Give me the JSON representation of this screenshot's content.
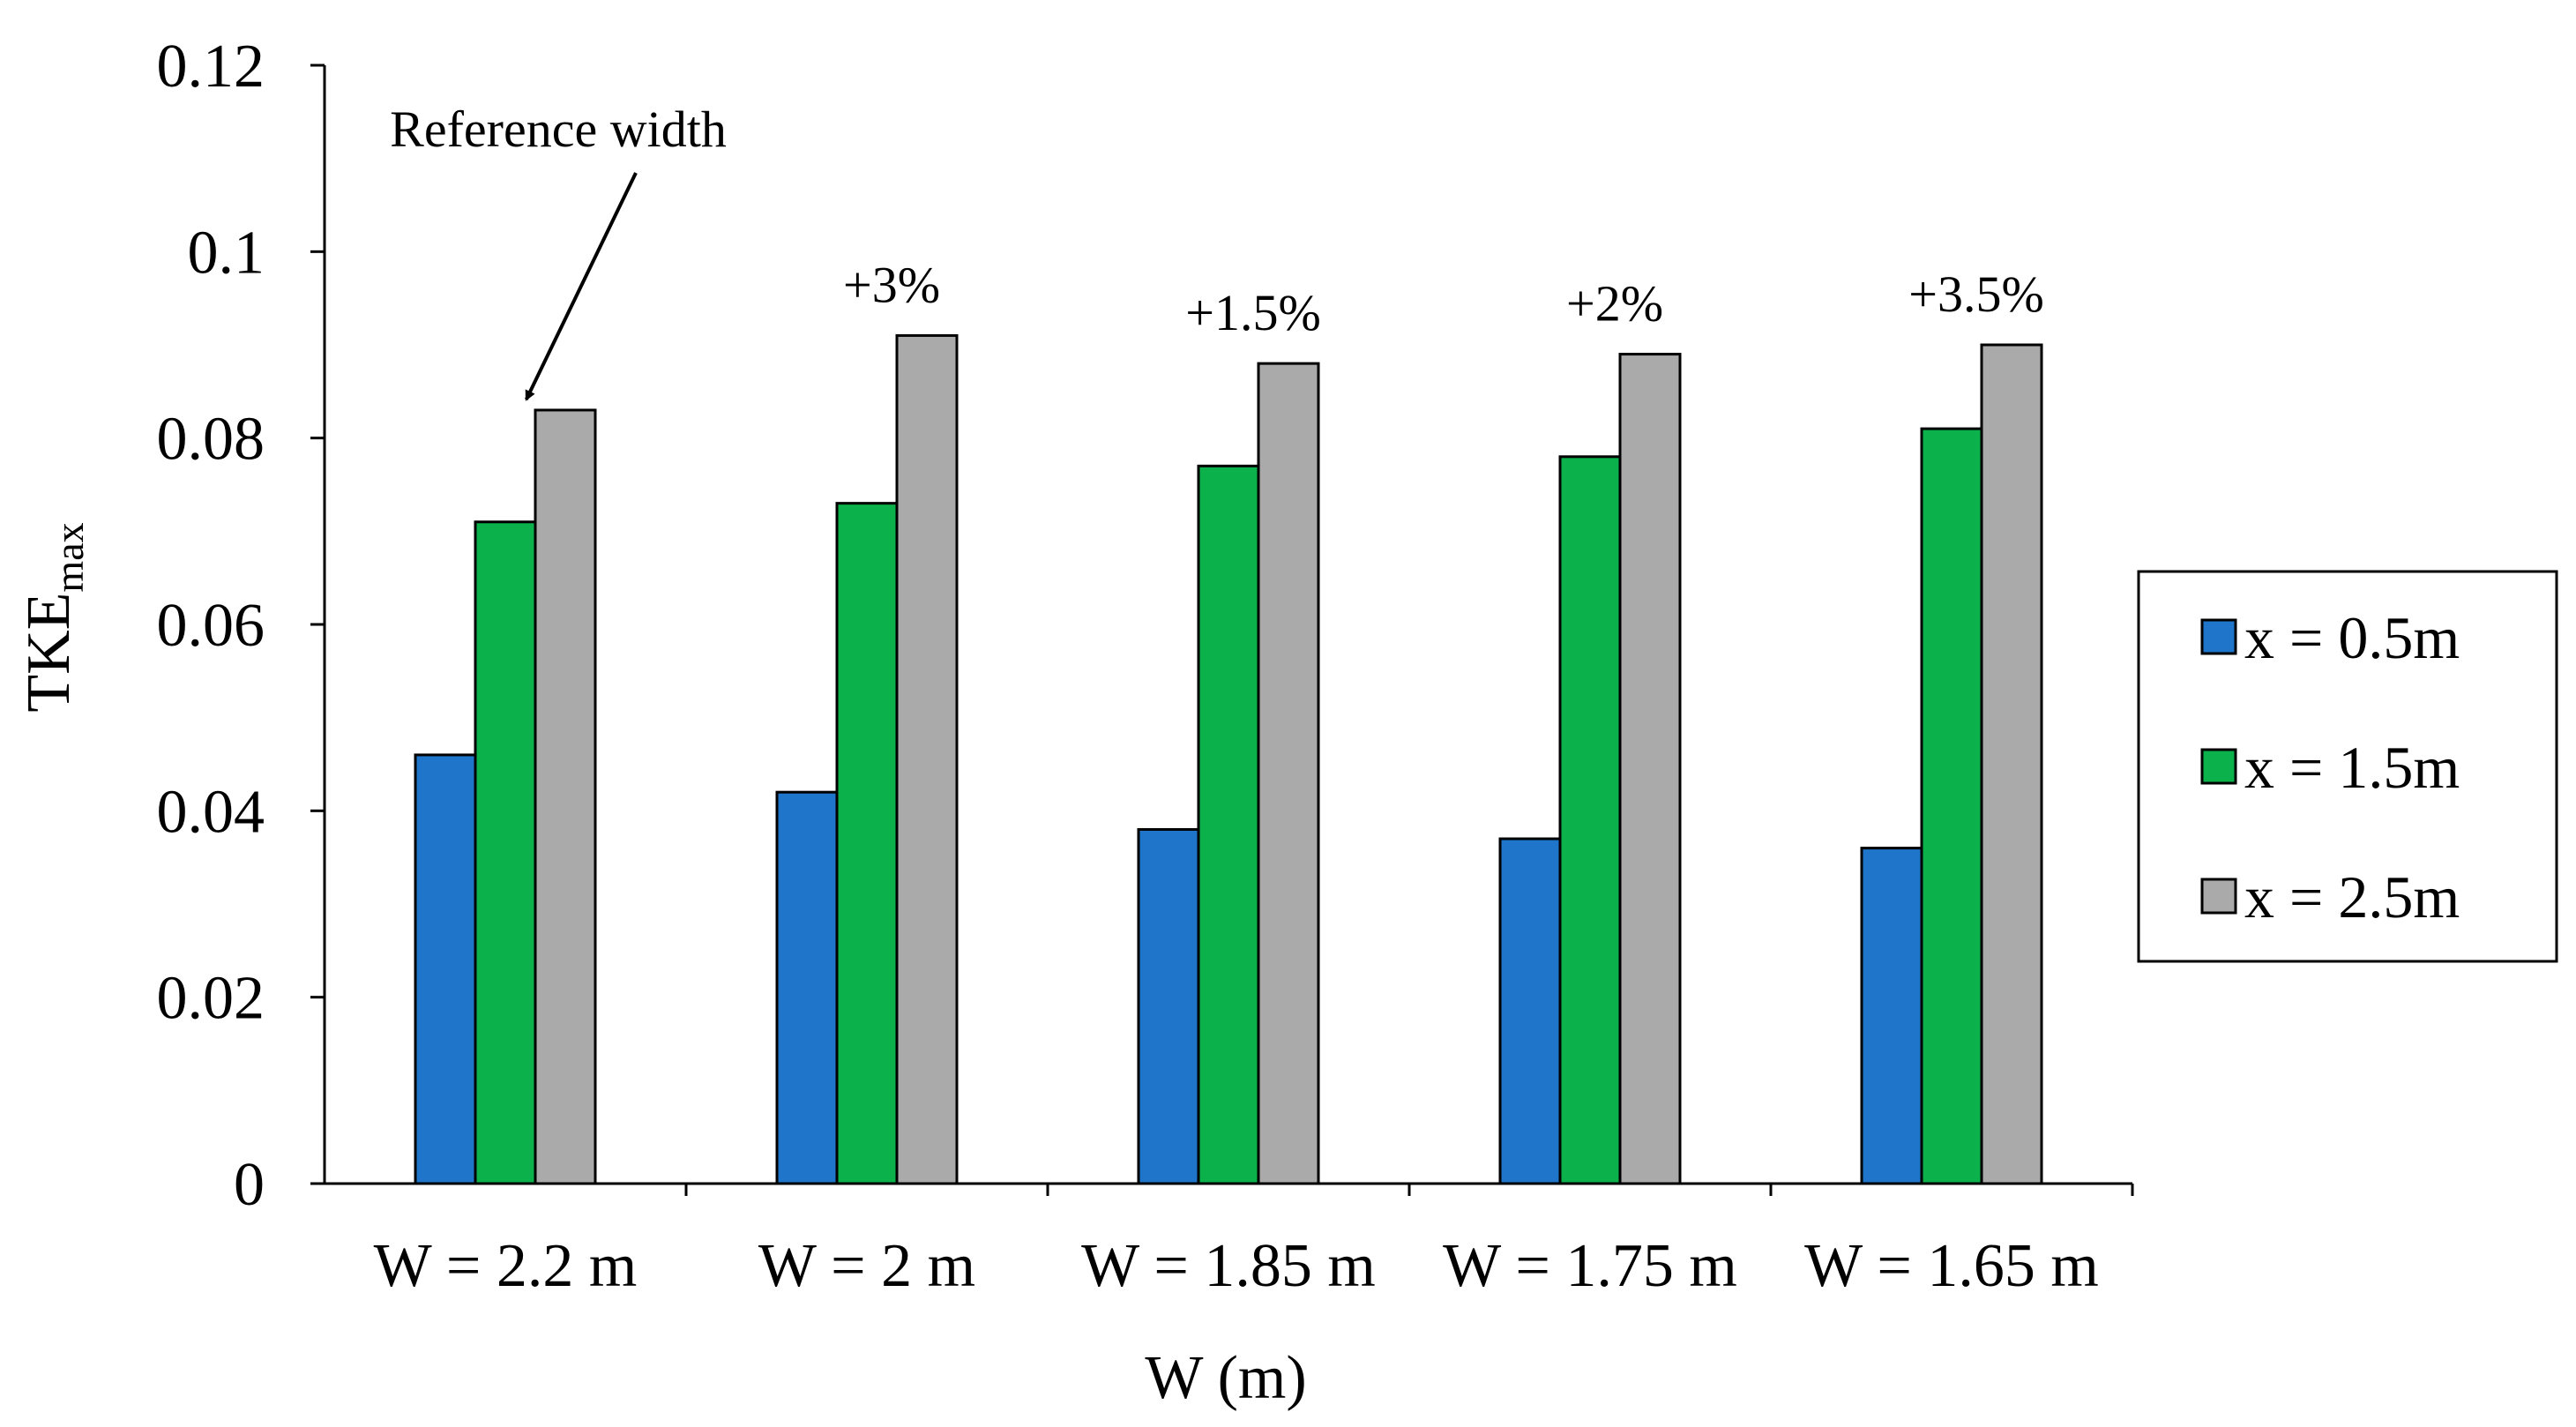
{
  "chart_data": {
    "type": "bar",
    "title": "",
    "xlabel": "W (m)",
    "ylabel": "TKE",
    "ylabel_sub": "max",
    "categories": [
      "W = 2.2 m",
      "W = 2 m",
      "W = 1.85 m",
      "W = 1.75 m",
      "W = 1.65 m"
    ],
    "series": [
      {
        "name": "x = 0.5m",
        "color": "#1F75C9",
        "values": [
          0.046,
          0.042,
          0.038,
          0.037,
          0.036
        ]
      },
      {
        "name": "x = 1.5m",
        "color": "#0BB14A",
        "values": [
          0.071,
          0.073,
          0.077,
          0.078,
          0.081
        ]
      },
      {
        "name": "x = 2.5m",
        "color": "#AAAAAA",
        "values": [
          0.083,
          0.091,
          0.088,
          0.089,
          0.09
        ]
      }
    ],
    "ylim": [
      0,
      0.12
    ],
    "yticks": [
      0,
      0.02,
      0.04,
      0.06,
      0.08,
      0.1,
      0.12
    ],
    "ytick_labels": [
      "0",
      "0.02",
      "0.04",
      "0.06",
      "0.08",
      "0.1",
      "0.12"
    ],
    "grid": false,
    "legend_position": "right",
    "annotations": [
      {
        "text": "Reference width",
        "category_index": 0,
        "type": "arrow"
      },
      {
        "text": "+3%",
        "category_index": 1
      },
      {
        "text": "+1.5%",
        "category_index": 2
      },
      {
        "text": "+2%",
        "category_index": 3
      },
      {
        "text": "+3.5%",
        "category_index": 4
      }
    ]
  }
}
